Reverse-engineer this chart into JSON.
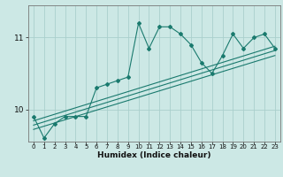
{
  "title": "",
  "xlabel": "Humidex (Indice chaleur)",
  "bg_color": "#cce8e5",
  "line_color": "#1a7a6e",
  "grid_color": "#aacfcc",
  "x_ticks": [
    0,
    1,
    2,
    3,
    4,
    5,
    6,
    7,
    8,
    9,
    10,
    11,
    12,
    13,
    14,
    15,
    16,
    17,
    18,
    19,
    20,
    21,
    22,
    23
  ],
  "y_ticks": [
    10,
    11
  ],
  "ylim": [
    9.55,
    11.45
  ],
  "xlim": [
    -0.5,
    23.5
  ],
  "series1": [
    9.9,
    9.6,
    9.8,
    9.9,
    9.9,
    9.9,
    10.3,
    10.35,
    10.4,
    10.45,
    11.2,
    10.85,
    11.15,
    11.15,
    11.05,
    10.9,
    10.65,
    10.5,
    10.75,
    11.05,
    10.85,
    11.0,
    11.05,
    10.85
  ],
  "line1_x": [
    0,
    23
  ],
  "line1_y": [
    9.72,
    10.75
  ],
  "line2_x": [
    0,
    23
  ],
  "line2_y": [
    9.78,
    10.82
  ],
  "line3_x": [
    0,
    23
  ],
  "line3_y": [
    9.84,
    10.88
  ]
}
